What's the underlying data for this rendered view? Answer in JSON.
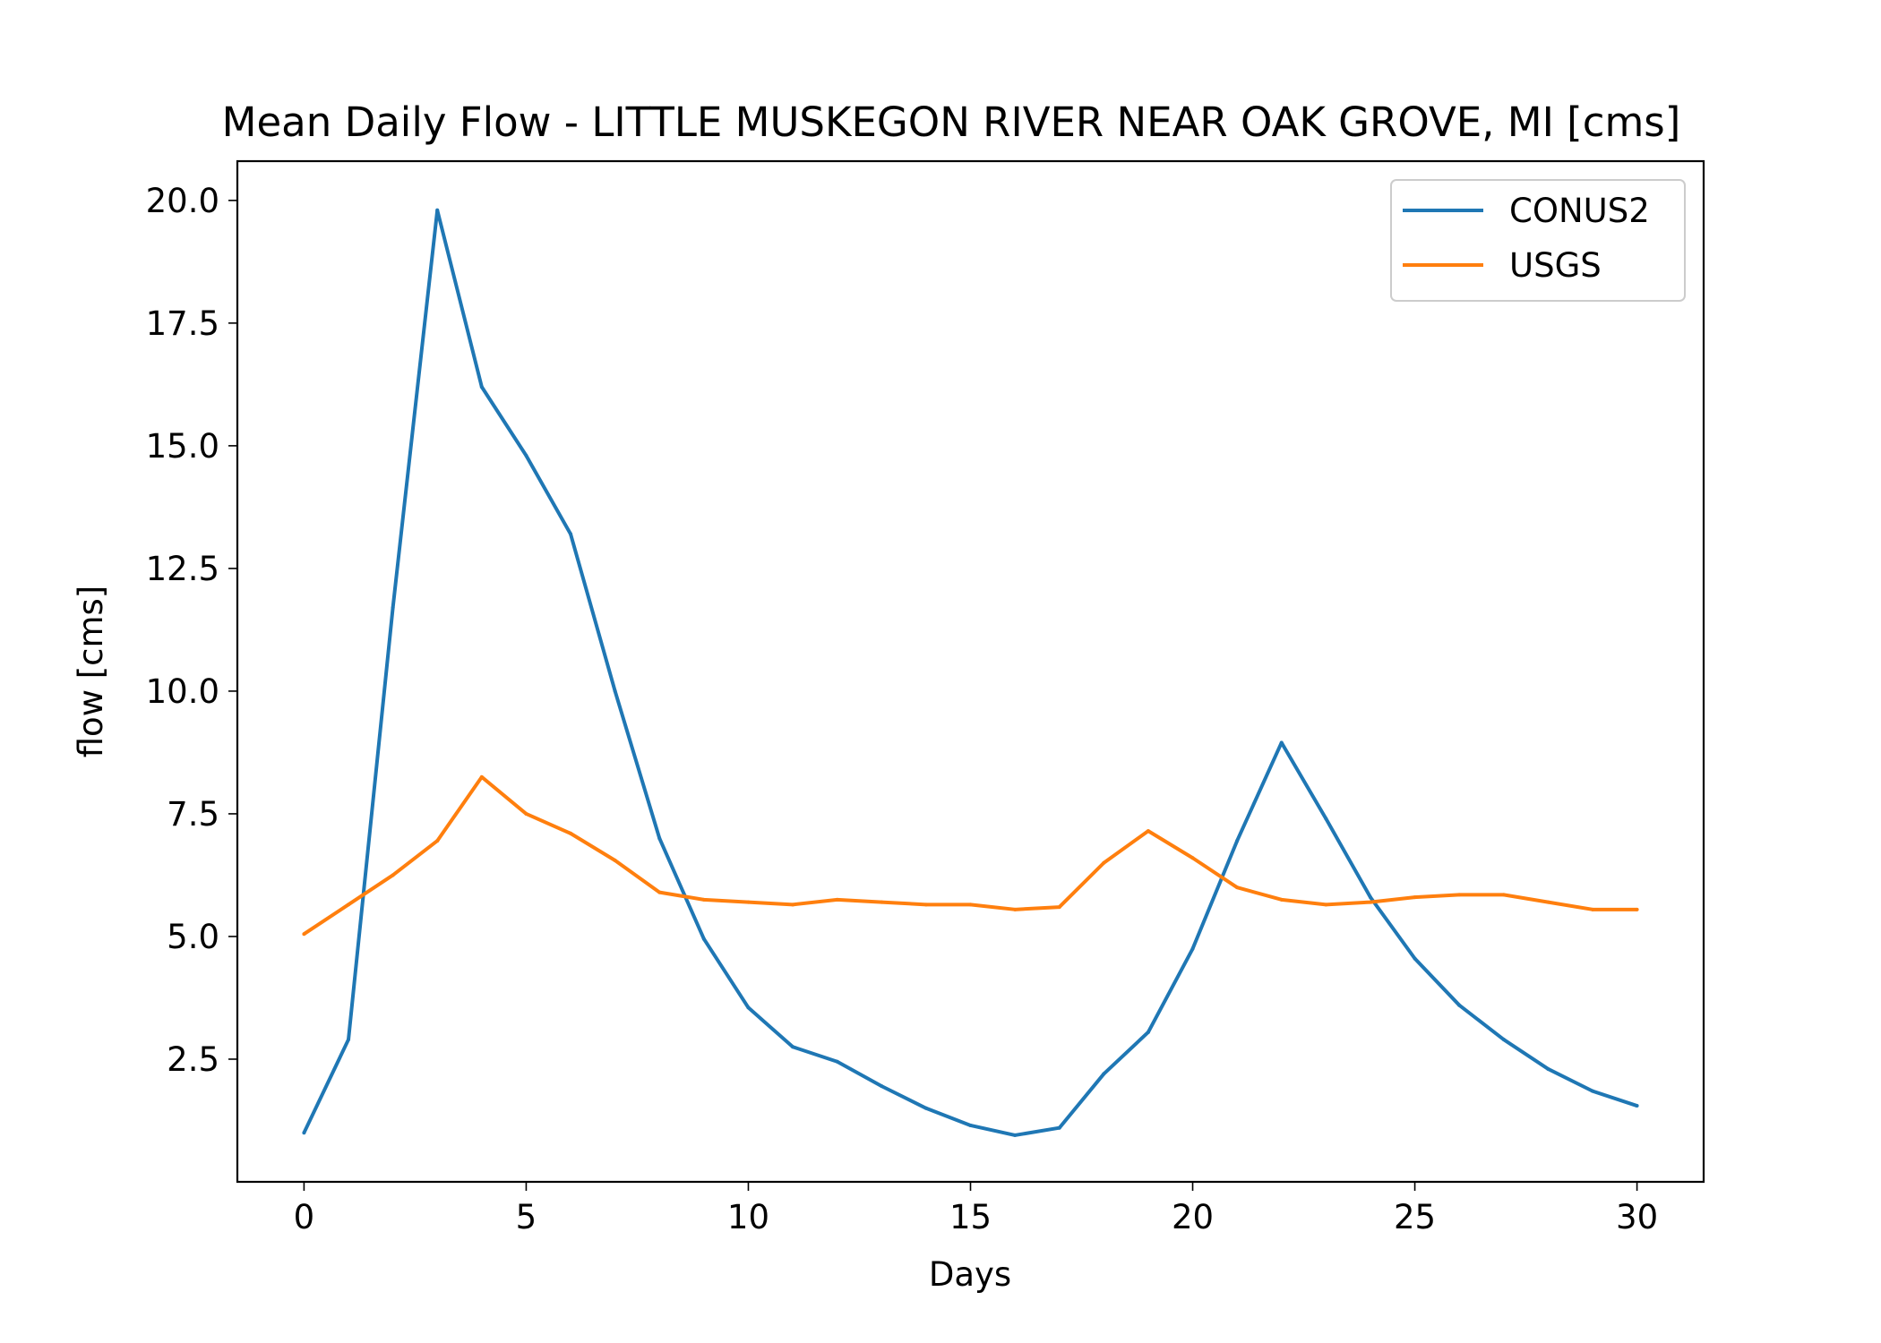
{
  "chart_data": {
    "type": "line",
    "title": "Mean Daily Flow - LITTLE MUSKEGON RIVER NEAR OAK GROVE, MI [cms]",
    "xlabel": "Days",
    "ylabel": "flow [cms]",
    "xlim": [
      -1.5,
      31.5
    ],
    "ylim": [
      0.0,
      20.8
    ],
    "xticks": [
      0,
      5,
      10,
      15,
      20,
      25,
      30
    ],
    "xtick_labels": [
      "0",
      "5",
      "10",
      "15",
      "20",
      "25",
      "30"
    ],
    "yticks": [
      2.5,
      5.0,
      7.5,
      10.0,
      12.5,
      15.0,
      17.5,
      20.0
    ],
    "ytick_labels": [
      "2.5",
      "5.0",
      "7.5",
      "10.0",
      "12.5",
      "15.0",
      "17.5",
      "20.0"
    ],
    "grid": false,
    "legend_position": "top-right",
    "x": [
      0,
      1,
      2,
      3,
      4,
      5,
      6,
      7,
      8,
      9,
      10,
      11,
      12,
      13,
      14,
      15,
      16,
      17,
      18,
      19,
      20,
      21,
      22,
      23,
      24,
      25,
      26,
      27,
      28,
      29,
      30
    ],
    "series": [
      {
        "name": "CONUS2",
        "color": "#1f77b4",
        "values": [
          1.0,
          2.9,
          11.7,
          19.8,
          16.2,
          14.8,
          13.2,
          10.0,
          7.0,
          4.95,
          3.55,
          2.75,
          2.45,
          1.95,
          1.5,
          1.15,
          0.95,
          1.1,
          2.2,
          3.05,
          4.75,
          6.95,
          8.95,
          7.4,
          5.8,
          4.55,
          3.6,
          2.9,
          2.3,
          1.85,
          1.55
        ]
      },
      {
        "name": "USGS",
        "color": "#ff7f0e",
        "values": [
          5.05,
          5.65,
          6.25,
          6.95,
          8.25,
          7.5,
          7.1,
          6.55,
          5.9,
          5.75,
          5.7,
          5.65,
          5.75,
          5.7,
          5.65,
          5.65,
          5.55,
          5.6,
          6.5,
          7.15,
          6.6,
          6.0,
          5.75,
          5.65,
          5.7,
          5.8,
          5.85,
          5.85,
          5.7,
          5.55,
          5.55
        ]
      }
    ]
  }
}
